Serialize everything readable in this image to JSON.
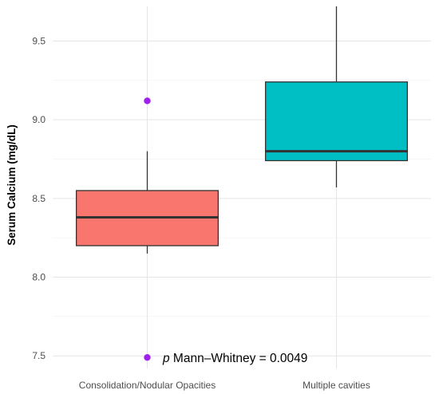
{
  "chart_data": {
    "type": "box",
    "title": "",
    "xlabel": "",
    "ylabel": "Serum Calcium (mg/dL)",
    "ylim": [
      7.42,
      9.72
    ],
    "yticks": [
      7.5,
      8.0,
      8.5,
      9.0,
      9.5
    ],
    "ytick_labels": [
      "7.5",
      "8.0",
      "8.5",
      "9.0",
      "9.5"
    ],
    "grid": true,
    "legend": "none",
    "categories": [
      "Consolidation/Nodular Opacities",
      "Multiple cavities"
    ],
    "boxes": [
      {
        "category": "Consolidation/Nodular Opacities",
        "whisker_low": 8.15,
        "q1": 8.2,
        "median": 8.38,
        "q3": 8.55,
        "whisker_high": 8.8,
        "outliers": [
          9.12,
          7.49
        ],
        "fill": "#F8766D"
      },
      {
        "category": "Multiple cavities",
        "whisker_low": 8.57,
        "q1": 8.74,
        "median": 8.8,
        "q3": 9.24,
        "whisker_high": 9.72,
        "outliers": [],
        "fill": "#00BFC4"
      }
    ],
    "outlier_color": "#A020F0",
    "annotation": {
      "prefix": "p",
      "text": " Mann–Whitney = 0.0049",
      "y_value": 7.49
    }
  }
}
